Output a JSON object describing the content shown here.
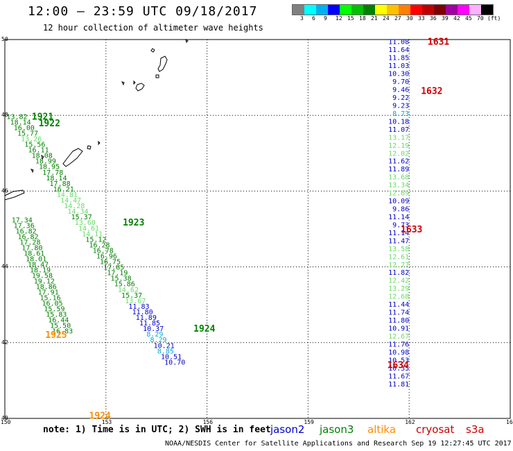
{
  "title": "12:00 – 23:59 UTC 09/18/2017",
  "subtitle": "12 hour collection of altimeter wave heights",
  "legend": {
    "colors": [
      "#808080",
      "#00ffff",
      "#00b0f0",
      "#0000ff",
      "#00ff00",
      "#00c000",
      "#008000",
      "#ffff00",
      "#ffc000",
      "#ff8000",
      "#ff0000",
      "#c00000",
      "#800000",
      "#a000a0",
      "#ff00ff",
      "#ffb0ff",
      "#000000"
    ],
    "ticks": [
      "3",
      "6",
      "9",
      "12",
      "15",
      "18",
      "21",
      "24",
      "27",
      "30",
      "33",
      "36",
      "39",
      "42",
      "45",
      "70",
      "(ft)"
    ]
  },
  "axes": {
    "lat_labels": [
      "50",
      "48",
      "46",
      "44",
      "42",
      "40"
    ],
    "lon_labels": [
      "150",
      "153",
      "156",
      "159",
      "162",
      "165"
    ]
  },
  "sat_colors": {
    "jason2": "#0000cc",
    "jason3": "#008000",
    "jason3_light": "#66dd66",
    "altika": "#ff8c00",
    "cryosat": "#cc0000",
    "s3a_light": "#00aadd"
  },
  "pass_labels": [
    {
      "text": "1631",
      "lon": 162.55,
      "lat": 49.95,
      "sat": "cryosat"
    },
    {
      "text": "1632",
      "lon": 162.35,
      "lat": 48.65,
      "sat": "cryosat"
    },
    {
      "text": "1633",
      "lon": 161.75,
      "lat": 45.0,
      "sat": "cryosat"
    },
    {
      "text": "1634",
      "lon": 161.35,
      "lat": 41.42,
      "sat": "cryosat"
    },
    {
      "text": "1921",
      "lon": 150.8,
      "lat": 47.98,
      "sat": "jason3"
    },
    {
      "text": "1922",
      "lon": 151.0,
      "lat": 47.8,
      "sat": "jason3"
    },
    {
      "text": "1923",
      "lon": 153.5,
      "lat": 45.18,
      "sat": "jason3"
    },
    {
      "text": "1924",
      "lon": 155.6,
      "lat": 42.38,
      "sat": "jason3"
    },
    {
      "text": "1925",
      "lon": 151.2,
      "lat": 42.22,
      "sat": "altika"
    },
    {
      "text": "1924",
      "lon": 152.5,
      "lat": 40.08,
      "sat": "altika"
    }
  ],
  "tracks": [
    {
      "name": "east-track",
      "x0": 162.0,
      "y0": 49.95,
      "dx": 0,
      "dy": -0.21,
      "anchor": "end",
      "points": [
        [
          "11.08",
          "jason2"
        ],
        [
          "11.64",
          "jason2"
        ],
        [
          "11.85",
          "jason2"
        ],
        [
          "11.03",
          "jason2"
        ],
        [
          "10.30",
          "jason2"
        ],
        [
          "9.70",
          "jason2"
        ],
        [
          "9.46",
          "jason2"
        ],
        [
          "9.22",
          "jason2"
        ],
        [
          "9.23",
          "jason2"
        ],
        [
          "8.73",
          "s3a_light"
        ],
        [
          "10.18",
          "jason2"
        ],
        [
          "11.07",
          "jason2"
        ],
        [
          "13.17",
          "jason3_light"
        ],
        [
          "12.19",
          "jason3_light"
        ],
        [
          "12.02",
          "jason3_light"
        ],
        [
          "11.62",
          "jason2"
        ],
        [
          "11.89",
          "jason2"
        ],
        [
          "13.68",
          "jason3_light"
        ],
        [
          "13.34",
          "jason3_light"
        ],
        [
          "12.69",
          "jason3_light"
        ],
        [
          "10.09",
          "jason2"
        ],
        [
          "9.86",
          "jason2"
        ],
        [
          "11.14",
          "jason2"
        ],
        [
          "9.73",
          "jason2"
        ],
        [
          "11.14",
          "jason2"
        ],
        [
          "11.47",
          "jason2"
        ],
        [
          "13.58",
          "jason3_light"
        ],
        [
          "12.61",
          "jason3_light"
        ],
        [
          "12.77",
          "jason3_light"
        ],
        [
          "11.82",
          "jason2"
        ],
        [
          "12.42",
          "jason3_light"
        ],
        [
          "13.29",
          "jason3_light"
        ],
        [
          "12.68",
          "jason3_light"
        ],
        [
          "11.44",
          "jason2"
        ],
        [
          "11.74",
          "jason2"
        ],
        [
          "11.80",
          "jason2"
        ],
        [
          "10.91",
          "jason2"
        ],
        [
          "12.67",
          "jason3_light"
        ],
        [
          "11.76",
          "jason2"
        ],
        [
          "10.98",
          "jason2"
        ],
        [
          "10.53",
          "jason2"
        ],
        [
          "10.35",
          "jason2"
        ],
        [
          "11.67",
          "jason2"
        ],
        [
          "11.81",
          "jason2"
        ]
      ]
    },
    {
      "name": "diag-track",
      "x0": 150.05,
      "y0": 47.98,
      "dx": 0.1065,
      "dy": -0.1474,
      "anchor": "start",
      "points": [
        [
          "13.82",
          "jason3"
        ],
        [
          "18.14",
          "jason3"
        ],
        [
          "16.00",
          "jason3"
        ],
        [
          "15.77",
          "jason3"
        ],
        [
          "13.26",
          "jason3_light"
        ],
        [
          "15.56",
          "jason3"
        ],
        [
          "16.11",
          "jason3"
        ],
        [
          "18.08",
          "jason3"
        ],
        [
          "18.99",
          "jason3"
        ],
        [
          "18.95",
          "jason3"
        ],
        [
          "17.78",
          "jason3"
        ],
        [
          "18.14",
          "jason3"
        ],
        [
          "17.88",
          "jason3"
        ],
        [
          "16.21",
          "jason3"
        ],
        [
          "14.81",
          "jason3_light"
        ],
        [
          "14.47",
          "jason3_light"
        ],
        [
          "14.28",
          "jason3_light"
        ],
        [
          "14.34",
          "jason3_light"
        ],
        [
          "15.37",
          "jason3"
        ],
        [
          "13.60",
          "jason3_light"
        ],
        [
          "14.61",
          "jason3_light"
        ],
        [
          "14.11",
          "jason3_light"
        ],
        [
          "15.12",
          "jason3"
        ],
        [
          "16.28",
          "jason3"
        ],
        [
          "16.78",
          "jason3"
        ],
        [
          "16.96",
          "jason3"
        ],
        [
          "16.75",
          "jason3"
        ],
        [
          "17.85",
          "jason3"
        ],
        [
          "17.19",
          "jason3"
        ],
        [
          "15.38",
          "jason3"
        ],
        [
          "15.86",
          "jason3"
        ],
        [
          "14.62",
          "jason3_light"
        ],
        [
          "15.37",
          "jason3"
        ],
        [
          "13.67",
          "jason3_light"
        ],
        [
          "11.83",
          "jason2"
        ],
        [
          "11.80",
          "jason2"
        ],
        [
          "11.89",
          "jason2"
        ],
        [
          "11.85",
          "jason2"
        ],
        [
          "10.37",
          "jason2"
        ],
        [
          "8.29",
          "s3a_light"
        ],
        [
          "8.29",
          "s3a_light"
        ],
        [
          "10.21",
          "jason2"
        ],
        [
          "8.85",
          "s3a_light"
        ],
        [
          "10.51",
          "jason2"
        ],
        [
          "10.70",
          "jason2"
        ]
      ]
    },
    {
      "name": "west-track",
      "x0": 150.2,
      "y0": 45.25,
      "dx": 0.06,
      "dy": -0.1465,
      "anchor": "start",
      "points": [
        [
          "17.34",
          "jason3"
        ],
        [
          "17.36",
          "jason3"
        ],
        [
          "16.82",
          "jason3"
        ],
        [
          "16.82",
          "jason3"
        ],
        [
          "17.28",
          "jason3"
        ],
        [
          "17.80",
          "jason3"
        ],
        [
          "18.61",
          "jason3"
        ],
        [
          "18.01",
          "jason3"
        ],
        [
          "18.47",
          "jason3"
        ],
        [
          "18.19",
          "jason3"
        ],
        [
          "19.58",
          "jason3"
        ],
        [
          "19.12",
          "jason3"
        ],
        [
          "18.86",
          "jason3"
        ],
        [
          "17.91",
          "jason3"
        ],
        [
          "15.16",
          "jason3"
        ],
        [
          "16.05",
          "jason3"
        ],
        [
          "15.59",
          "jason3"
        ],
        [
          "15.83",
          "jason3"
        ],
        [
          "16.44",
          "jason3"
        ],
        [
          "15.50",
          "jason3"
        ],
        [
          "16.83",
          "jason3"
        ]
      ]
    }
  ],
  "note": "note: 1) Time is in UTC; 2) SWH is in feet",
  "satellites": [
    {
      "label": "jason2",
      "color": "#0000cc"
    },
    {
      "label": "jason3",
      "color": "#008000"
    },
    {
      "label": "altika",
      "color": "#ff8c00"
    },
    {
      "label": "cryosat",
      "color": "#cc0000"
    },
    {
      "label": "s3a",
      "color": "#cc0000"
    }
  ],
  "footer": "NOAA/NESDIS Center for Satellite Applications and Research   Sep 19 12:27:45 UTC 2017"
}
